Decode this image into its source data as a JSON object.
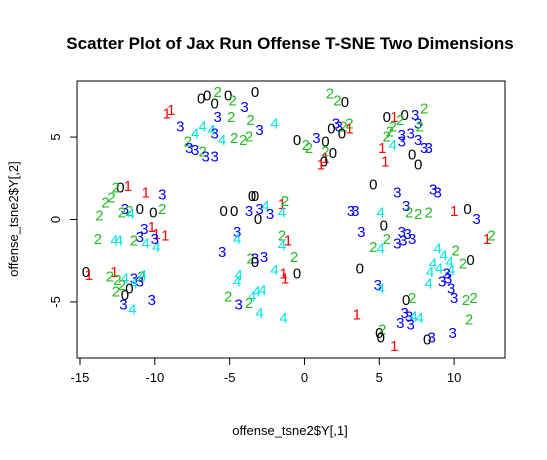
{
  "chart_data": {
    "type": "scatter",
    "title": "Scatter Plot of Jax Run Offense T-SNE Two Dimensions",
    "xlabel": "offense_tsne2$Y[,1]",
    "ylabel": "offense_tsne2$Y[,2]",
    "xlim": [
      -15.2,
      13.4
    ],
    "ylim": [
      -8.4,
      8.4
    ],
    "xticks": [
      -15,
      -10,
      -5,
      0,
      5,
      10
    ],
    "yticks": [
      -5,
      0,
      5
    ],
    "grid": false,
    "legend": "none",
    "label_colors": {
      "0": "#000000",
      "1": "#ff0000",
      "2": "#22bb22",
      "3": "#0000ff",
      "4": "#00e5e5"
    },
    "points": [
      [
        -6.5,
        7.5,
        "0"
      ],
      [
        -5.8,
        7.7,
        "2"
      ],
      [
        -5.1,
        7.5,
        "0"
      ],
      [
        -6.9,
        7.3,
        "0"
      ],
      [
        -6.0,
        7.0,
        "0"
      ],
      [
        -3.3,
        7.7,
        "0"
      ],
      [
        -4.8,
        7.2,
        "2"
      ],
      [
        -8.9,
        6.6,
        "1"
      ],
      [
        -9.2,
        6.4,
        "1"
      ],
      [
        -5.8,
        6.2,
        "3"
      ],
      [
        -4.0,
        6.8,
        "3"
      ],
      [
        -4.9,
        6.2,
        "2"
      ],
      [
        -3.6,
        6.0,
        "2"
      ],
      [
        -3.0,
        5.4,
        "3"
      ],
      [
        -6.8,
        5.6,
        "4"
      ],
      [
        -6.2,
        5.4,
        "4"
      ],
      [
        -6.0,
        5.2,
        "3"
      ],
      [
        -5.5,
        4.8,
        "4"
      ],
      [
        -4.7,
        4.9,
        "2"
      ],
      [
        -4.1,
        4.8,
        "2"
      ],
      [
        -3.7,
        5.0,
        "2"
      ],
      [
        -8.3,
        5.6,
        "3"
      ],
      [
        -7.3,
        5.2,
        "4"
      ],
      [
        -7.8,
        4.7,
        "2"
      ],
      [
        -7.7,
        4.3,
        "3"
      ],
      [
        -7.3,
        4.2,
        "3"
      ],
      [
        -6.8,
        4.1,
        "2"
      ],
      [
        -6.0,
        3.8,
        "3"
      ],
      [
        -6.6,
        3.8,
        "3"
      ],
      [
        -2.0,
        5.8,
        "4"
      ],
      [
        1.7,
        7.6,
        "2"
      ],
      [
        2.7,
        7.1,
        "0"
      ],
      [
        2.2,
        7.2,
        "2"
      ],
      [
        2.1,
        5.8,
        "3"
      ],
      [
        2.3,
        5.6,
        "3"
      ],
      [
        2.6,
        5.6,
        "2"
      ],
      [
        2.5,
        5.2,
        "0"
      ],
      [
        3.0,
        5.8,
        "2"
      ],
      [
        3.0,
        5.5,
        "1"
      ],
      [
        1.8,
        5.5,
        "0"
      ],
      [
        0.8,
        4.9,
        "3"
      ],
      [
        1.4,
        4.7,
        "0"
      ],
      [
        0.3,
        4.3,
        "2"
      ],
      [
        0.1,
        4.5,
        "2"
      ],
      [
        -0.5,
        4.8,
        "0"
      ],
      [
        1.4,
        4.1,
        "2"
      ],
      [
        1.9,
        4.0,
        "0"
      ],
      [
        1.4,
        3.7,
        "1"
      ],
      [
        1.3,
        3.5,
        "0"
      ],
      [
        1.1,
        3.3,
        "1"
      ],
      [
        6.7,
        6.3,
        "0"
      ],
      [
        5.5,
        6.2,
        "0"
      ],
      [
        6.0,
        6.2,
        "1"
      ],
      [
        6.4,
        6.0,
        "2"
      ],
      [
        7.4,
        6.3,
        "3"
      ],
      [
        7.6,
        5.8,
        "3"
      ],
      [
        8.0,
        6.7,
        "2"
      ],
      [
        5.9,
        5.6,
        "2"
      ],
      [
        5.7,
        5.3,
        "2"
      ],
      [
        6.5,
        5.1,
        "3"
      ],
      [
        5.5,
        5.0,
        "2"
      ],
      [
        7.1,
        5.2,
        "3"
      ],
      [
        7.7,
        5.6,
        "2"
      ],
      [
        5.2,
        4.3,
        "1"
      ],
      [
        5.9,
        4.5,
        "4"
      ],
      [
        6.5,
        4.7,
        "3"
      ],
      [
        7.6,
        4.8,
        "3"
      ],
      [
        8.0,
        4.3,
        "3"
      ],
      [
        7.2,
        3.9,
        "0"
      ],
      [
        8.3,
        4.3,
        "3"
      ],
      [
        5.4,
        3.5,
        "1"
      ],
      [
        7.6,
        3.3,
        "0"
      ],
      [
        -12.3,
        1.9,
        "0"
      ],
      [
        -12.6,
        1.9,
        "2"
      ],
      [
        -11.8,
        2.0,
        "1"
      ],
      [
        -10.6,
        1.6,
        "1"
      ],
      [
        -9.5,
        1.5,
        "3"
      ],
      [
        -12.9,
        1.3,
        "2"
      ],
      [
        -13.3,
        1.0,
        "2"
      ],
      [
        -12.0,
        0.6,
        "3"
      ],
      [
        -11.7,
        0.5,
        "2"
      ],
      [
        -12.2,
        0.4,
        "2"
      ],
      [
        -11.0,
        0.6,
        "0"
      ],
      [
        -10.1,
        0.4,
        "0"
      ],
      [
        -9.5,
        0.6,
        "2"
      ],
      [
        -13.7,
        0.2,
        "2"
      ],
      [
        -11.6,
        0.3,
        "4"
      ],
      [
        -10.2,
        -0.5,
        "1"
      ],
      [
        -10.7,
        -0.6,
        "3"
      ],
      [
        -9.9,
        -0.9,
        "1"
      ],
      [
        -9.3,
        -1.0,
        "1"
      ],
      [
        -11.0,
        -1.1,
        "3"
      ],
      [
        -12.7,
        -1.3,
        "4"
      ],
      [
        -12.4,
        -1.3,
        "4"
      ],
      [
        -13.8,
        -1.2,
        "2"
      ],
      [
        -11.4,
        -1.3,
        "2"
      ],
      [
        -10.6,
        -1.5,
        "4"
      ],
      [
        -9.9,
        -1.7,
        "4"
      ],
      [
        -10.0,
        -1.2,
        "3"
      ],
      [
        -14.6,
        -3.2,
        "0"
      ],
      [
        -14.4,
        -3.4,
        "1"
      ],
      [
        -12.7,
        -3.2,
        "1"
      ],
      [
        -13.0,
        -3.5,
        "2"
      ],
      [
        -12.5,
        -3.7,
        "2"
      ],
      [
        -12.0,
        -3.6,
        "4"
      ],
      [
        -11.4,
        -3.6,
        "3"
      ],
      [
        -10.9,
        -3.5,
        "2"
      ],
      [
        -11.0,
        -3.8,
        "3"
      ],
      [
        -10.8,
        -3.4,
        "4"
      ],
      [
        -11.4,
        -3.9,
        "4"
      ],
      [
        -12.2,
        -4.0,
        "2"
      ],
      [
        -11.7,
        -4.2,
        "0"
      ],
      [
        -12.6,
        -4.4,
        "2"
      ],
      [
        -12.0,
        -4.6,
        "0"
      ],
      [
        -10.2,
        -4.9,
        "3"
      ],
      [
        -11.5,
        -5.5,
        "4"
      ],
      [
        -12.1,
        -5.2,
        "3"
      ],
      [
        -3.5,
        1.4,
        "0"
      ],
      [
        -3.3,
        1.4,
        "0"
      ],
      [
        -1.5,
        0.9,
        "1"
      ],
      [
        -1.3,
        1.1,
        "2"
      ],
      [
        -2.6,
        0.8,
        "4"
      ],
      [
        -3.0,
        0.6,
        "3"
      ],
      [
        -5.4,
        0.5,
        "0"
      ],
      [
        -4.7,
        0.5,
        "0"
      ],
      [
        -3.7,
        0.5,
        "3"
      ],
      [
        -2.3,
        0.3,
        "3"
      ],
      [
        -1.5,
        0.4,
        "4"
      ],
      [
        -3.1,
        0.0,
        "0"
      ],
      [
        -4.5,
        -0.8,
        "3"
      ],
      [
        -4.5,
        -1.2,
        "4"
      ],
      [
        -1.5,
        -1.0,
        "2"
      ],
      [
        -1.1,
        -1.3,
        "1"
      ],
      [
        -1.5,
        -1.6,
        "4"
      ],
      [
        -5.5,
        -2.0,
        "3"
      ],
      [
        -3.6,
        -2.4,
        "2"
      ],
      [
        -3.3,
        -2.4,
        "3"
      ],
      [
        -2.7,
        -2.3,
        "3"
      ],
      [
        -3.3,
        -2.6,
        "0"
      ],
      [
        -0.7,
        -2.3,
        "2"
      ],
      [
        -4.4,
        -3.4,
        "4"
      ],
      [
        -4.5,
        -3.8,
        "4"
      ],
      [
        -2.0,
        -3.1,
        "4"
      ],
      [
        -1.4,
        -3.3,
        "1"
      ],
      [
        -0.5,
        -3.3,
        "0"
      ],
      [
        -1.3,
        -3.6,
        "1"
      ],
      [
        -5.1,
        -4.7,
        "2"
      ],
      [
        -3.5,
        -4.7,
        "4"
      ],
      [
        -3.7,
        -5.1,
        "2"
      ],
      [
        -3.2,
        -4.4,
        "4"
      ],
      [
        -2.8,
        -4.3,
        "4"
      ],
      [
        -4.4,
        -5.2,
        "3"
      ],
      [
        -3.0,
        -5.7,
        "4"
      ],
      [
        -1.4,
        -6.0,
        "4"
      ],
      [
        4.6,
        2.1,
        "0"
      ],
      [
        6.2,
        1.6,
        "3"
      ],
      [
        8.6,
        1.8,
        "3"
      ],
      [
        8.9,
        1.6,
        "3"
      ],
      [
        6.8,
        0.8,
        "3"
      ],
      [
        7.0,
        0.4,
        "2"
      ],
      [
        3.1,
        0.5,
        "3"
      ],
      [
        3.4,
        0.5,
        "3"
      ],
      [
        5.1,
        0.4,
        "4"
      ],
      [
        7.6,
        0.3,
        "2"
      ],
      [
        8.3,
        0.4,
        "2"
      ],
      [
        10.0,
        0.5,
        "1"
      ],
      [
        10.9,
        0.6,
        "0"
      ],
      [
        11.5,
        0.0,
        "3"
      ],
      [
        3.8,
        -0.8,
        "3"
      ],
      [
        5.3,
        -0.4,
        "0"
      ],
      [
        6.5,
        -0.8,
        "3"
      ],
      [
        6.9,
        -0.9,
        "3"
      ],
      [
        7.2,
        -1.2,
        "3"
      ],
      [
        6.6,
        -1.3,
        "3"
      ],
      [
        5.5,
        -1.2,
        "2"
      ],
      [
        5.1,
        -1.8,
        "4"
      ],
      [
        6.2,
        -1.5,
        "3"
      ],
      [
        4.6,
        -1.7,
        "2"
      ],
      [
        12.2,
        -1.2,
        "1"
      ],
      [
        12.5,
        -1.0,
        "2"
      ],
      [
        8.9,
        -1.8,
        "4"
      ],
      [
        9.3,
        -2.2,
        "4"
      ],
      [
        10.1,
        -1.9,
        "2"
      ],
      [
        9.7,
        -2.6,
        "4"
      ],
      [
        8.6,
        -2.7,
        "4"
      ],
      [
        9.0,
        -3.0,
        "4"
      ],
      [
        8.4,
        -3.2,
        "4"
      ],
      [
        9.8,
        -3.1,
        "4"
      ],
      [
        10.6,
        -2.7,
        "2"
      ],
      [
        11.1,
        -2.5,
        "0"
      ],
      [
        3.7,
        -3.0,
        "0"
      ],
      [
        9.2,
        -3.8,
        "3"
      ],
      [
        9.5,
        -3.3,
        "3"
      ],
      [
        9.6,
        -3.6,
        "3"
      ],
      [
        9.8,
        -4.2,
        "3"
      ],
      [
        4.9,
        -4.0,
        "3"
      ],
      [
        5.1,
        -4.2,
        "4"
      ],
      [
        8.3,
        -3.9,
        "4"
      ],
      [
        10.0,
        -4.8,
        "3"
      ],
      [
        6.8,
        -4.9,
        "0"
      ],
      [
        7.2,
        -4.8,
        "2"
      ],
      [
        10.8,
        -4.9,
        "2"
      ],
      [
        11.3,
        -4.8,
        "2"
      ],
      [
        6.7,
        -5.7,
        "3"
      ],
      [
        7.0,
        -5.9,
        "3"
      ],
      [
        7.3,
        -5.9,
        "4"
      ],
      [
        7.7,
        -6.0,
        "4"
      ],
      [
        7.1,
        -6.4,
        "3"
      ],
      [
        6.4,
        -6.3,
        "3"
      ],
      [
        3.5,
        -5.8,
        "1"
      ],
      [
        11.0,
        -6.1,
        "2"
      ],
      [
        5.0,
        -6.9,
        "0"
      ],
      [
        5.2,
        -6.7,
        "2"
      ],
      [
        5.1,
        -7.2,
        "0"
      ],
      [
        8.5,
        -7.2,
        "3"
      ],
      [
        8.2,
        -7.3,
        "0"
      ],
      [
        9.9,
        -6.9,
        "3"
      ],
      [
        6.0,
        -7.7,
        "1"
      ]
    ]
  }
}
